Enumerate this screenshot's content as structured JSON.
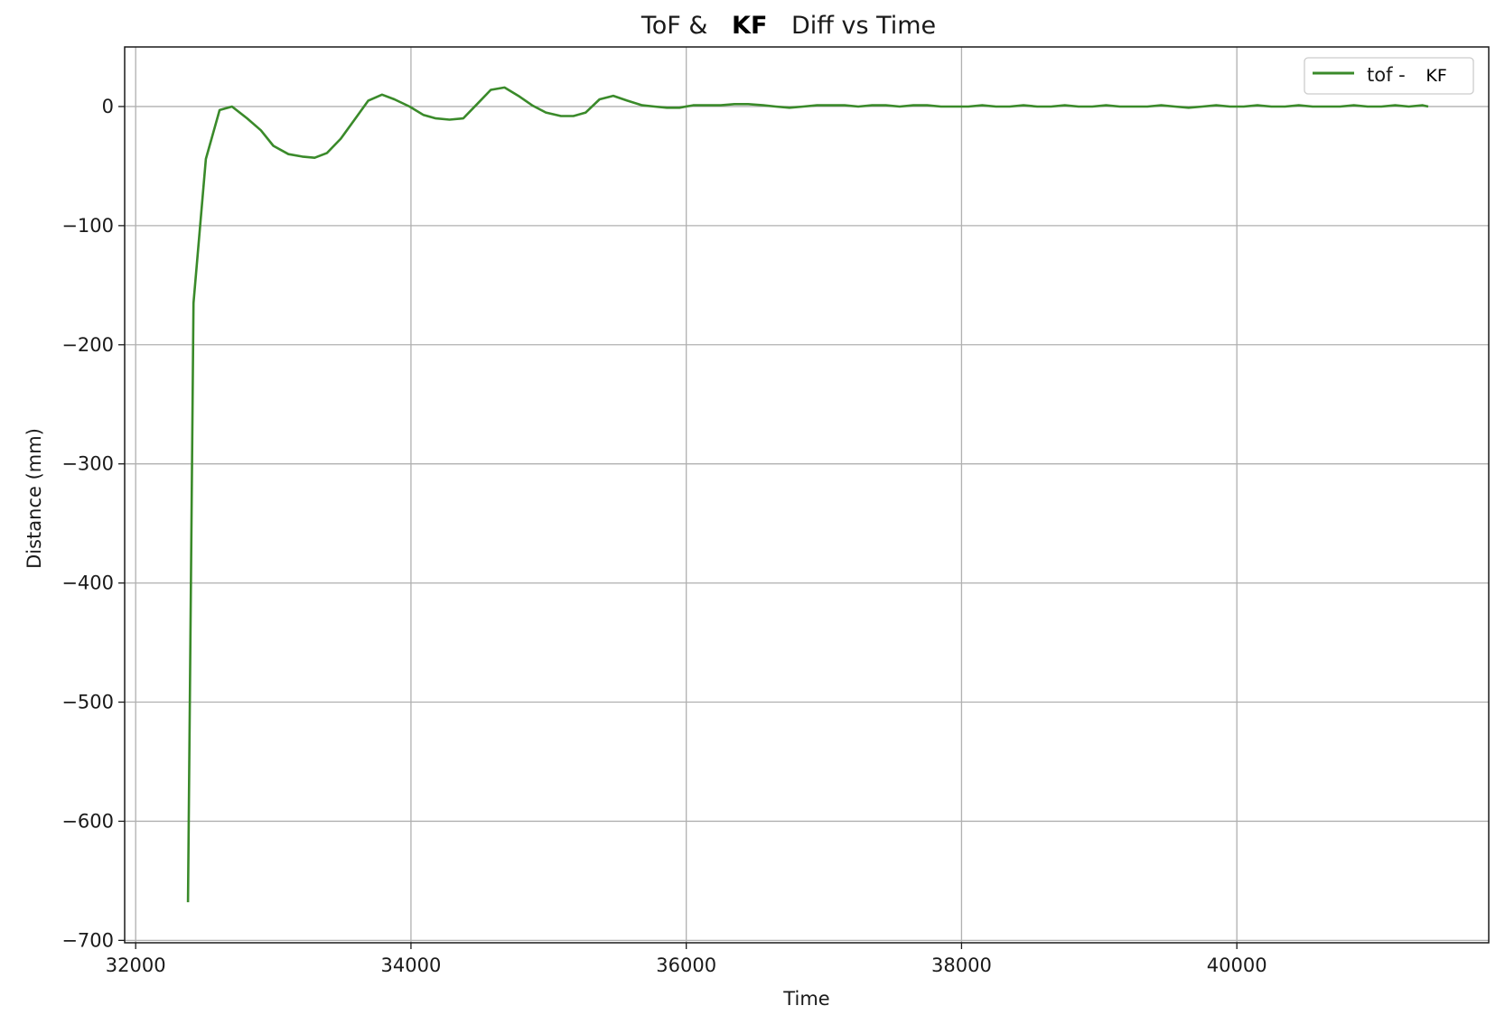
{
  "chart_data": {
    "type": "line",
    "title": {
      "prefix": "ToF &",
      "emphasis": "KF",
      "suffix": "Diff vs Time"
    },
    "xlabel": "Time",
    "ylabel": "Distance (mm)",
    "xlim": [
      31920,
      41830
    ],
    "ylim": [
      -702,
      50
    ],
    "xticks": [
      32000,
      34000,
      36000,
      38000,
      40000
    ],
    "yticks": [
      0,
      -100,
      -200,
      -300,
      -400,
      -500,
      -600,
      -700
    ],
    "xtick_labels": [
      "32000",
      "34000",
      "36000",
      "38000",
      "40000"
    ],
    "ytick_labels": [
      "0",
      "−100",
      "−200",
      "−300",
      "−400",
      "−500",
      "−600",
      "−700"
    ],
    "grid": true,
    "legend": {
      "placement": "top-right",
      "entries": [
        {
          "prefix": "tof -",
          "emphasis": "KF"
        }
      ]
    },
    "series": [
      {
        "name": "tof - KF",
        "color": "#3a8a2a",
        "x": [
          32380,
          32420,
          32510,
          32610,
          32700,
          32810,
          32910,
          33000,
          33110,
          33210,
          33300,
          33390,
          33490,
          33590,
          33690,
          33790,
          33880,
          33990,
          34090,
          34180,
          34280,
          34380,
          34480,
          34580,
          34680,
          34780,
          34880,
          34980,
          35090,
          35180,
          35270,
          35370,
          35470,
          35570,
          35680,
          35770,
          35860,
          35950,
          36050,
          36150,
          36250,
          36350,
          36450,
          36560,
          36650,
          36750,
          36850,
          36950,
          37050,
          37150,
          37250,
          37350,
          37450,
          37550,
          37650,
          37750,
          37850,
          37950,
          38050,
          38150,
          38250,
          38350,
          38450,
          38550,
          38650,
          38750,
          38850,
          38950,
          39050,
          39150,
          39250,
          39350,
          39450,
          39550,
          39650,
          39750,
          39850,
          39950,
          40050,
          40150,
          40250,
          40350,
          40450,
          40550,
          40650,
          40750,
          40850,
          40950,
          41050,
          41150,
          41250,
          41350,
          41390
        ],
        "y": [
          -668,
          -165,
          -44,
          -3,
          0,
          -10,
          -20,
          -33,
          -40,
          -42,
          -43,
          -39,
          -27,
          -11,
          5,
          10,
          6,
          0,
          -7,
          -10,
          -11,
          -10,
          2,
          14,
          16,
          9,
          1,
          -5,
          -8,
          -8,
          -5,
          6,
          9,
          5,
          1,
          0,
          -1,
          -1,
          1,
          1,
          1,
          2,
          2,
          1,
          0,
          -1,
          0,
          1,
          1,
          1,
          0,
          1,
          1,
          0,
          1,
          1,
          0,
          0,
          0,
          1,
          0,
          0,
          1,
          0,
          0,
          1,
          0,
          0,
          1,
          0,
          0,
          0,
          1,
          0,
          -1,
          0,
          1,
          0,
          0,
          1,
          0,
          0,
          1,
          0,
          0,
          0,
          1,
          0,
          0,
          1,
          0,
          1,
          0
        ]
      }
    ]
  }
}
